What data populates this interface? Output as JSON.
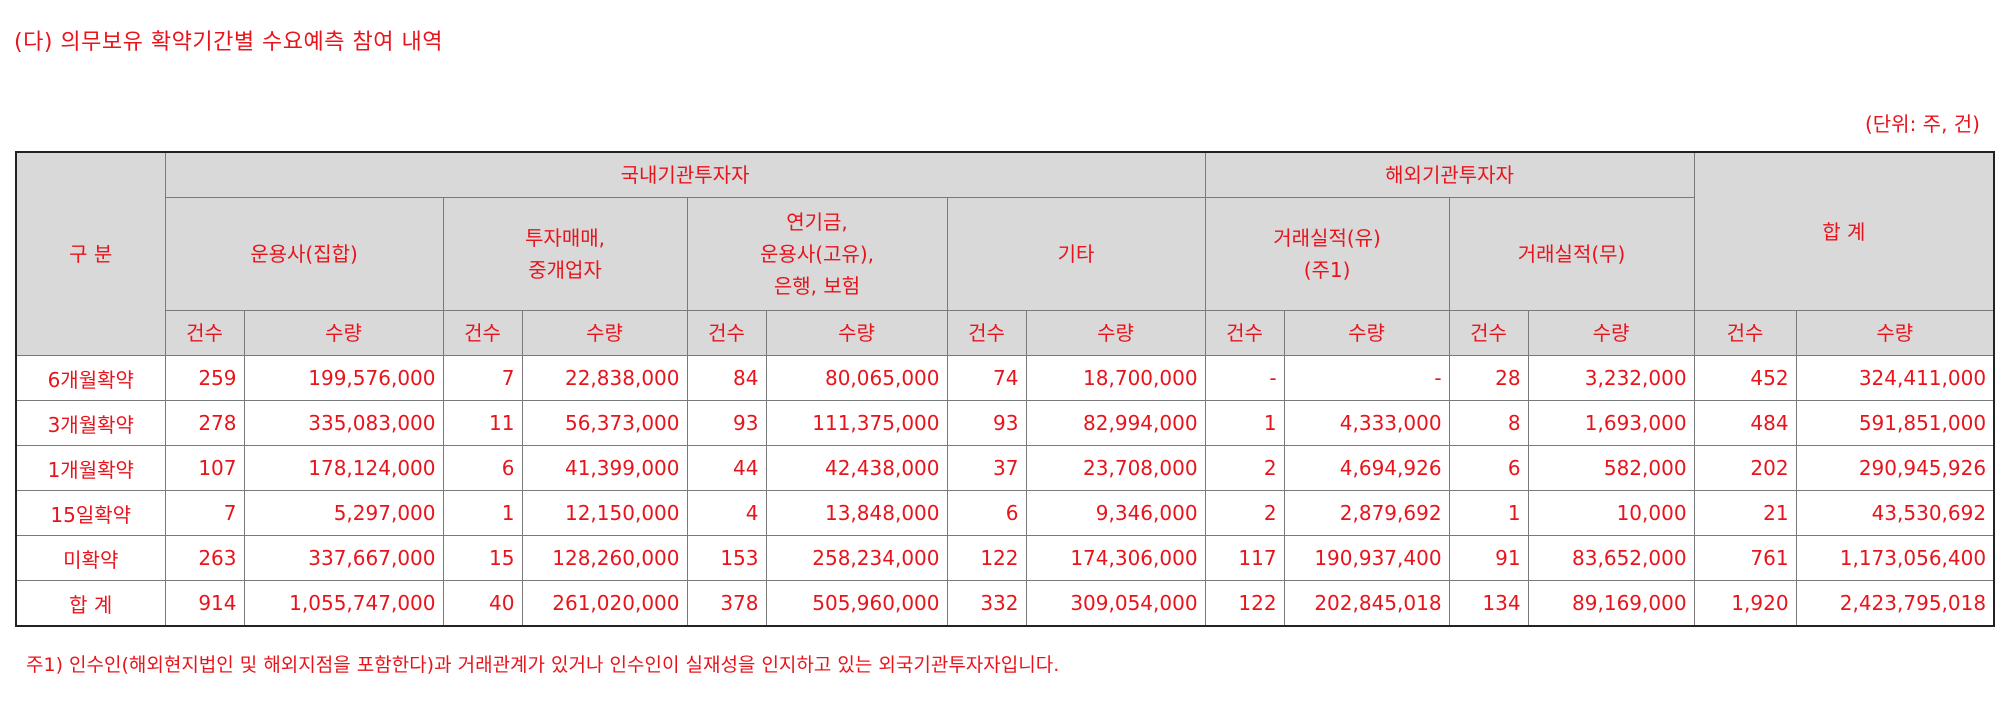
{
  "title": "(다) 의무보유 확약기간별 수요예측 참여 내역",
  "unit": "(단위: 주, 건)",
  "header": {
    "category": "구 분",
    "domestic": "국내기관투자자",
    "foreign": "해외기관투자자",
    "total": "합 계",
    "groups": [
      "운용사(집합)",
      "투자매매,\n중개업자",
      "연기금,\n운용사(고유),\n은행, 보험",
      "기타",
      "거래실적(유)\n(주1)",
      "거래실적(무)"
    ],
    "count": "건수",
    "quantity": "수량"
  },
  "rows": [
    {
      "label": "6개월확약",
      "cells": [
        "259",
        "199,576,000",
        "7",
        "22,838,000",
        "84",
        "80,065,000",
        "74",
        "18,700,000",
        "-",
        "-",
        "28",
        "3,232,000",
        "452",
        "324,411,000"
      ]
    },
    {
      "label": "3개월확약",
      "cells": [
        "278",
        "335,083,000",
        "11",
        "56,373,000",
        "93",
        "111,375,000",
        "93",
        "82,994,000",
        "1",
        "4,333,000",
        "8",
        "1,693,000",
        "484",
        "591,851,000"
      ]
    },
    {
      "label": "1개월확약",
      "cells": [
        "107",
        "178,124,000",
        "6",
        "41,399,000",
        "44",
        "42,438,000",
        "37",
        "23,708,000",
        "2",
        "4,694,926",
        "6",
        "582,000",
        "202",
        "290,945,926"
      ]
    },
    {
      "label": "15일확약",
      "cells": [
        "7",
        "5,297,000",
        "1",
        "12,150,000",
        "4",
        "13,848,000",
        "6",
        "9,346,000",
        "2",
        "2,879,692",
        "1",
        "10,000",
        "21",
        "43,530,692"
      ]
    },
    {
      "label": "미확약",
      "cells": [
        "263",
        "337,667,000",
        "15",
        "128,260,000",
        "153",
        "258,234,000",
        "122",
        "174,306,000",
        "117",
        "190,937,400",
        "91",
        "83,652,000",
        "761",
        "1,173,056,400"
      ]
    },
    {
      "label": "합 계",
      "cells": [
        "914",
        "1,055,747,000",
        "40",
        "261,020,000",
        "378",
        "505,960,000",
        "332",
        "309,054,000",
        "122",
        "202,845,018",
        "134",
        "89,169,000",
        "1,920",
        "2,423,795,018"
      ]
    }
  ],
  "note": "주1)  인수인(해외현지법인 및 해외지점을 포함한다)과 거래관계가 있거나 인수인이 실재성을 인지하고 있는 외국기관투자자입니다."
}
